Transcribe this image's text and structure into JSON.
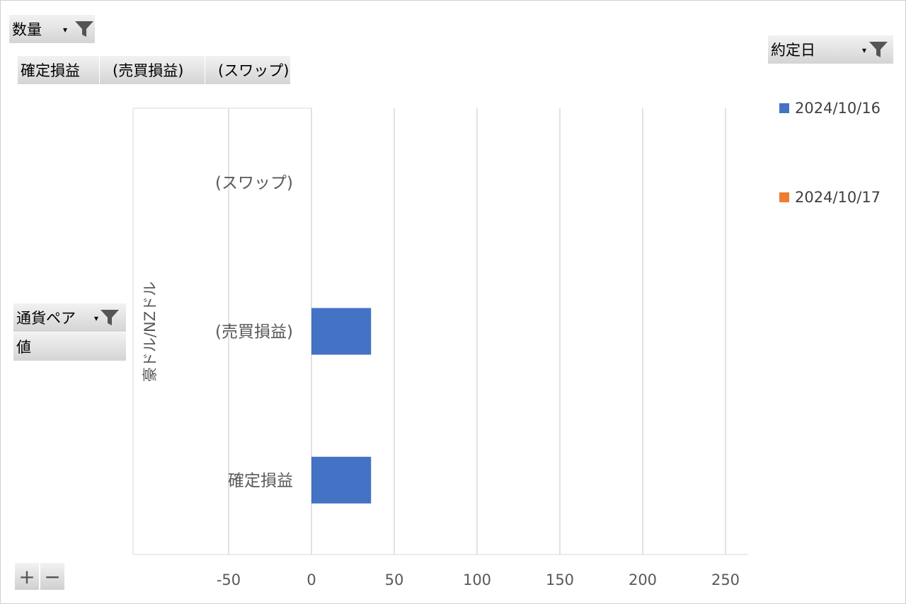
{
  "filters": {
    "value_field": "数量",
    "column_field": "約定日",
    "row_field": "通貨ペア",
    "values_label": "値"
  },
  "value_buttons": [
    "確定損益",
    "(売買損益)",
    "(スワップ)"
  ],
  "group_label": "豪ドル/NZドル",
  "legend": [
    {
      "label": "2024/10/16",
      "color": "#4472c4"
    },
    {
      "label": "2024/10/17",
      "color": "#ed7d31"
    }
  ],
  "chart_data": {
    "type": "bar",
    "orientation": "horizontal",
    "group": "豪ドル/NZドル",
    "categories": [
      "確定損益",
      "(売買損益)",
      "(スワップ)"
    ],
    "series": [
      {
        "name": "2024/10/16",
        "color": "#4472c4",
        "values": [
          36,
          36,
          0
        ]
      },
      {
        "name": "2024/10/17",
        "color": "#ed7d31",
        "values": [
          0,
          0,
          0
        ]
      }
    ],
    "xlim": [
      -100,
      275
    ],
    "xticks": [
      -50,
      0,
      50,
      100,
      150,
      200,
      250
    ],
    "grid": true,
    "legend_position": "right"
  },
  "controls": {
    "expand": "+",
    "collapse": "−"
  }
}
